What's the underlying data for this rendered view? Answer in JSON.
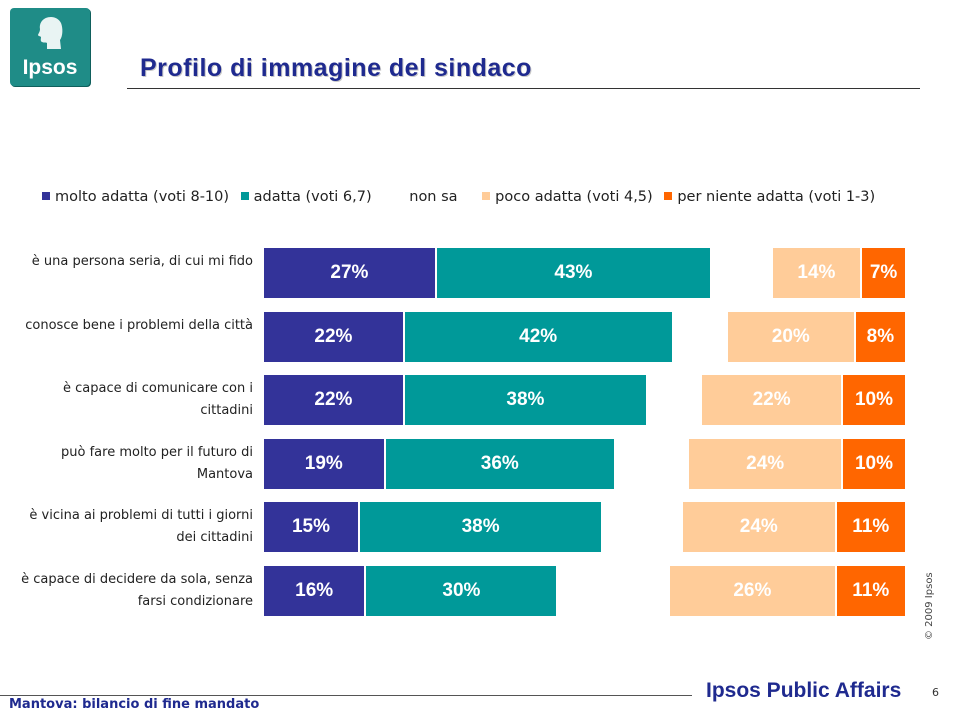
{
  "logo": {
    "text": "Ipsos"
  },
  "title": "Profilo di immagine del sindaco",
  "legend": [
    {
      "label": "molto adatta (voti 8-10)",
      "color": "#333399"
    },
    {
      "label": "adatta (voti 6,7)",
      "color": "#009999"
    },
    {
      "label": "non sa",
      "color": ""
    },
    {
      "label": "poco adatta (voti 4,5)",
      "color": "#ffcc99"
    },
    {
      "label": "per niente adatta (voti 1-3)",
      "color": "#ff6600"
    }
  ],
  "chart_data": {
    "type": "bar",
    "orientation": "horizontal",
    "stacked": true,
    "categories": [
      "è una persona seria, di cui mi fido",
      "conosce bene i problemi della città",
      "è capace di comunicare con i cittadini",
      "può fare molto per il futuro di Mantova",
      "è vicina ai problemi di tutti i giorni dei cittadini",
      "è capace di decidere da sola, senza farsi condizionare"
    ],
    "series": [
      {
        "name": "molto adatta (voti 8-10)",
        "color": "#333399",
        "values": [
          27,
          22,
          22,
          19,
          15,
          16
        ],
        "labels": [
          "27%",
          "22%",
          "22%",
          "19%",
          "15%",
          "16%"
        ]
      },
      {
        "name": "adatta (voti 6,7)",
        "color": "#009999",
        "values": [
          43,
          42,
          38,
          36,
          38,
          30
        ],
        "labels": [
          "43%",
          "42%",
          "38%",
          "36%",
          "38%",
          "30%"
        ]
      },
      {
        "name": "poco adatta (voti 4,5)",
        "color": "#ffcc99",
        "values": [
          14,
          20,
          22,
          24,
          24,
          26
        ],
        "labels": [
          "14%",
          "20%",
          "22%",
          "24%",
          "24%",
          "26%"
        ]
      },
      {
        "name": "per niente adatta (voti 1-3)",
        "color": "#ff6600",
        "values": [
          7,
          8,
          10,
          10,
          11,
          11
        ],
        "labels": [
          "7%",
          "8%",
          "10%",
          "10%",
          "11%",
          "11%"
        ]
      }
    ],
    "unit": "%",
    "legend_position": "top",
    "grid": false
  },
  "copyright": "© 2009 Ipsos",
  "footer": {
    "text": "Mantova: bilancio di fine mandato",
    "brand": "Ipsos Public Affairs",
    "page": "6"
  }
}
